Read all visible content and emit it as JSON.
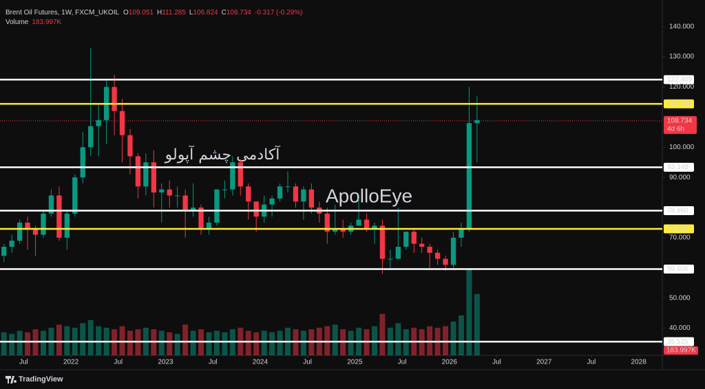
{
  "header": {
    "symbol": "Brent Oil Futures, 1W, FXCM_UKOIL",
    "ohlc": [
      {
        "key": "O",
        "value": 109.051
      },
      {
        "key": "H",
        "value": 111.285
      },
      {
        "key": "L",
        "value": 106.824
      },
      {
        "key": "C",
        "value": 108.734
      }
    ],
    "change": "-0.317 (-0.29%)",
    "volume_label": "Volume",
    "volume": "183.997K"
  },
  "watermarks": [
    "آکادمی چشم آپولو",
    "ApolloEye"
  ],
  "footer": {
    "brand": "TradingView"
  },
  "chart_data": {
    "type": "candlestick",
    "up_color": "#089981",
    "down_color": "#f23645",
    "x": [
      "2021-04",
      "2021-05",
      "2021-06",
      "2021-07",
      "2021-08",
      "2021-09",
      "2021-10",
      "2021-11",
      "2021-12",
      "2022-01",
      "2022-02",
      "2022-03",
      "2022-04",
      "2022-05",
      "2022-06",
      "2022-07",
      "2022-08",
      "2022-09",
      "2022-10",
      "2022-11",
      "2022-12",
      "2023-01",
      "2023-02",
      "2023-03",
      "2023-04",
      "2023-05",
      "2023-06",
      "2023-07",
      "2023-08",
      "2023-09",
      "2023-10",
      "2023-11",
      "2023-12",
      "2024-01",
      "2024-02",
      "2024-03",
      "2024-04",
      "2024-05",
      "2024-06",
      "2024-07",
      "2024-08",
      "2024-09",
      "2024-10",
      "2024-11",
      "2024-12",
      "2025-01",
      "2025-02",
      "2025-03",
      "2025-04",
      "2025-05",
      "2025-06",
      "2025-07",
      "2025-08",
      "2025-09",
      "2025-10",
      "2025-11",
      "2025-12",
      "2026-01",
      "2026-02",
      "2026-03",
      "2026-04"
    ],
    "open": [
      64,
      67,
      69,
      75,
      73,
      71,
      78,
      84,
      70,
      78,
      90,
      100,
      107,
      109,
      120,
      112,
      104,
      97,
      87,
      95,
      85,
      86,
      84,
      84,
      79,
      80,
      73,
      75,
      86,
      86,
      95,
      87,
      82,
      77,
      81,
      83,
      87,
      87,
      82,
      86,
      80,
      78,
      72,
      73,
      72,
      74,
      76,
      73,
      74,
      63,
      63,
      67,
      72,
      68,
      67,
      65,
      63,
      61,
      70,
      73,
      108
    ],
    "high": [
      68,
      71,
      76,
      77,
      74,
      79,
      86,
      87,
      79,
      91,
      105,
      133,
      114,
      122,
      124,
      116,
      106,
      98,
      98,
      99,
      88,
      89,
      87,
      86,
      88,
      81,
      77,
      86,
      89,
      97,
      96,
      88,
      82,
      84,
      84,
      88,
      92,
      88,
      87,
      88,
      82,
      80,
      81,
      76,
      75,
      83,
      78,
      75,
      76,
      66,
      80,
      72,
      73,
      70,
      68,
      66,
      64,
      72,
      75,
      120,
      117
    ],
    "low": [
      62,
      65,
      68,
      66,
      64,
      70,
      77,
      69,
      66,
      77,
      88,
      97,
      97,
      101,
      104,
      95,
      91,
      83,
      84,
      80,
      75,
      80,
      80,
      70,
      77,
      71,
      71,
      74,
      83,
      84,
      84,
      76,
      72,
      75,
      77,
      82,
      85,
      80,
      76,
      78,
      75,
      68,
      71,
      70,
      71,
      74,
      72,
      68,
      58,
      60,
      63,
      66,
      65,
      65,
      60,
      61,
      59,
      60,
      67,
      72,
      95
    ],
    "close": [
      67,
      69,
      75,
      73,
      71,
      78,
      84,
      70,
      78,
      90,
      100,
      107,
      109,
      120,
      112,
      104,
      97,
      87,
      95,
      85,
      86,
      84,
      84,
      79,
      80,
      73,
      75,
      86,
      86,
      95,
      87,
      82,
      77,
      81,
      83,
      87,
      87,
      82,
      86,
      80,
      78,
      72,
      73,
      72,
      74,
      76,
      73,
      74,
      63,
      63,
      67,
      72,
      68,
      67,
      65,
      63,
      61,
      70,
      73,
      108,
      109
    ],
    "volume": [
      150,
      140,
      160,
      150,
      170,
      160,
      180,
      200,
      190,
      180,
      210,
      230,
      190,
      180,
      170,
      190,
      160,
      170,
      180,
      170,
      160,
      150,
      140,
      200,
      160,
      170,
      150,
      160,
      150,
      170,
      180,
      160,
      150,
      160,
      150,
      160,
      180,
      170,
      160,
      170,
      180,
      190,
      200,
      170,
      160,
      180,
      170,
      190,
      270,
      180,
      210,
      170,
      180,
      170,
      190,
      180,
      190,
      220,
      260,
      560,
      400
    ],
    "xlim": [
      "2021-04",
      "2028-04"
    ],
    "xticks": [
      {
        "value": "2021-07",
        "label": "Jul"
      },
      {
        "value": "2022-01",
        "label": "2022"
      },
      {
        "value": "2022-07",
        "label": "Jul"
      },
      {
        "value": "2023-01",
        "label": "2023"
      },
      {
        "value": "2023-07",
        "label": "Jul"
      },
      {
        "value": "2024-01",
        "label": "2024"
      },
      {
        "value": "2024-07",
        "label": "Jul"
      },
      {
        "value": "2025-01",
        "label": "2025"
      },
      {
        "value": "2025-07",
        "label": "Jul"
      },
      {
        "value": "2026-01",
        "label": "2026"
      },
      {
        "value": "2026-07",
        "label": "Jul"
      },
      {
        "value": "2027-01",
        "label": "2027"
      },
      {
        "value": "2027-07",
        "label": "Jul"
      },
      {
        "value": "2028-01",
        "label": "2028"
      }
    ],
    "ylim": [
      31,
      147
    ],
    "yticks": [
      {
        "value": 140,
        "label": "140.000"
      },
      {
        "value": 130,
        "label": "130.000"
      },
      {
        "value": 120,
        "label": "120.000"
      },
      {
        "value": 100,
        "label": "100.000"
      },
      {
        "value": 90,
        "label": "90.000"
      },
      {
        "value": 70,
        "label": "70.000"
      },
      {
        "value": 50,
        "label": "50.000"
      },
      {
        "value": 40,
        "label": "40.000"
      }
    ],
    "levels": [
      {
        "value": 122.409,
        "label": "122.409",
        "color": "#ffffff"
      },
      {
        "value": 114.396,
        "label": "114.396",
        "color": "#ffeb3b"
      },
      {
        "value": 93.348,
        "label": "93.348",
        "color": "#ffffff"
      },
      {
        "value": 78.96,
        "label": "78.960",
        "color": "#ffffff"
      },
      {
        "value": 72.929,
        "label": "72.929",
        "color": "#ffeb3b"
      },
      {
        "value": 59.606,
        "label": "59.606",
        "color": "#ffffff"
      },
      {
        "value": 35.525,
        "label": "35.525",
        "color": "#ffffff"
      }
    ],
    "last_price": {
      "value": 108.734,
      "label": "108.734",
      "countdown": "4d 6h",
      "color": "#f23645"
    }
  }
}
